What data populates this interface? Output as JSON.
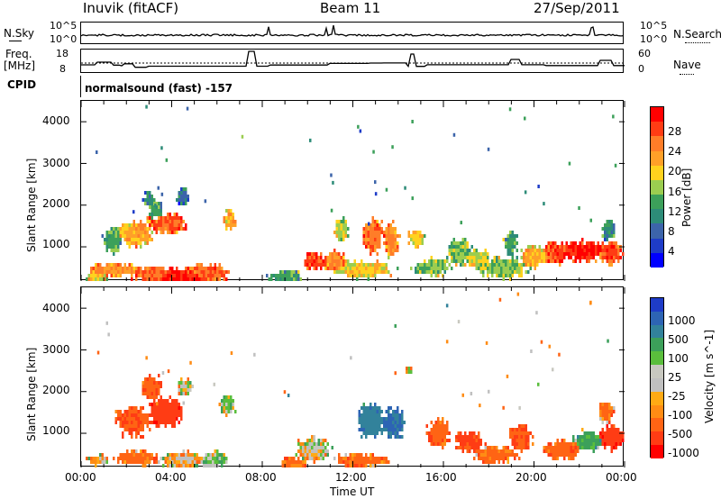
{
  "header": {
    "station": "Inuvik (fitACF)",
    "beam": "Beam 11",
    "date": "27/Sep/2011"
  },
  "top_panels": {
    "nsky_label": "N.Sky",
    "nsky_ticks": [
      "10^5",
      "10^0"
    ],
    "nsearch_label": "N.Search",
    "nsearch_ticks": [
      "10^5",
      "10^0"
    ],
    "freq_label": "Freq.",
    "freq_unit": "[MHz]",
    "freq_ticks": [
      "18",
      "8"
    ],
    "nave_label": "Nave",
    "nave_ticks": [
      "60",
      "0"
    ],
    "cpid_label": "CPID",
    "cpid_value": "normalsound (fast) -157"
  },
  "x_axis": {
    "label": "Time UT",
    "ticks": [
      "00:00",
      "04:00",
      "08:00",
      "12:00",
      "16:00",
      "20:00",
      "00:00"
    ]
  },
  "power_panel": {
    "ylabel": "Slant Range [km]",
    "yticks": [
      "4000",
      "3000",
      "2000",
      "1000"
    ],
    "colorbar_label": "Power [dB]",
    "colorbar_ticks": [
      "28",
      "24",
      "20",
      "16",
      "12",
      "8",
      "4"
    ],
    "colorbar_colors": [
      "#ff0000",
      "#ff3c14",
      "#ff7d28",
      "#ffa028",
      "#ffd21e",
      "#9bcd50",
      "#3ca05a",
      "#2d8c78",
      "#3c64aa",
      "#1e3cc8",
      "#0000ff"
    ]
  },
  "velocity_panel": {
    "ylabel": "Slant Range [km]",
    "yticks": [
      "4000",
      "3000",
      "2000",
      "1000"
    ],
    "colorbar_label": "Velocity [m s^-1]",
    "colorbar_ticks": [
      "1000",
      "500",
      "100",
      "25",
      "-25",
      "-100",
      "-500",
      "-1000"
    ],
    "colorbar_colors": [
      "#1e3cc8",
      "#2d64b4",
      "#32829b",
      "#3ca05a",
      "#5abe3c",
      "#c8c8c0",
      "#c0c0c0",
      "#ffaa14",
      "#ff8c14",
      "#ff6414",
      "#ff3c14",
      "#ff0000"
    ]
  },
  "chart_data": {
    "type": "heatmap",
    "xlabel": "Time UT",
    "ylabel": "Slant Range [km]",
    "xlim": [
      "00:00",
      "24:00"
    ],
    "ylim": [
      180,
      4500
    ],
    "power_scale": [
      0,
      30
    ],
    "velocity_scale": [
      -1000,
      1000
    ],
    "power_blobs": [
      {
        "t": 0.7,
        "r": 300,
        "w": 0.6,
        "h": 150,
        "v": 18
      },
      {
        "t": 1.5,
        "r": 450,
        "w": 1.5,
        "h": 200,
        "v": 22
      },
      {
        "t": 3.2,
        "r": 350,
        "w": 1.2,
        "h": 250,
        "v": 24
      },
      {
        "t": 4.5,
        "r": 300,
        "w": 2.0,
        "h": 250,
        "v": 27
      },
      {
        "t": 5.5,
        "r": 350,
        "w": 1.2,
        "h": 300,
        "v": 24
      },
      {
        "t": 2.4,
        "r": 1300,
        "w": 1.0,
        "h": 350,
        "v": 20
      },
      {
        "t": 3.8,
        "r": 1550,
        "w": 1.0,
        "h": 300,
        "v": 24
      },
      {
        "t": 3.3,
        "r": 1900,
        "w": 0.4,
        "h": 300,
        "v": 12
      },
      {
        "t": 3.0,
        "r": 2150,
        "w": 0.3,
        "h": 200,
        "v": 10
      },
      {
        "t": 4.5,
        "r": 2200,
        "w": 0.3,
        "h": 250,
        "v": 8
      },
      {
        "t": 6.6,
        "r": 1650,
        "w": 0.3,
        "h": 300,
        "v": 20
      },
      {
        "t": 1.4,
        "r": 1150,
        "w": 0.5,
        "h": 400,
        "v": 12
      },
      {
        "t": 9.0,
        "r": 300,
        "w": 1.0,
        "h": 150,
        "v": 12
      },
      {
        "t": 10.3,
        "r": 650,
        "w": 0.6,
        "h": 250,
        "v": 26
      },
      {
        "t": 11.2,
        "r": 650,
        "w": 0.6,
        "h": 300,
        "v": 22
      },
      {
        "t": 12.5,
        "r": 450,
        "w": 1.5,
        "h": 250,
        "v": 18
      },
      {
        "t": 12.9,
        "r": 1250,
        "w": 0.6,
        "h": 500,
        "v": 24
      },
      {
        "t": 13.7,
        "r": 1150,
        "w": 0.4,
        "h": 500,
        "v": 22
      },
      {
        "t": 11.5,
        "r": 1400,
        "w": 0.4,
        "h": 350,
        "v": 16
      },
      {
        "t": 14.8,
        "r": 1200,
        "w": 0.4,
        "h": 300,
        "v": 18
      },
      {
        "t": 15.5,
        "r": 500,
        "w": 1.0,
        "h": 250,
        "v": 14
      },
      {
        "t": 16.7,
        "r": 900,
        "w": 0.6,
        "h": 400,
        "v": 14
      },
      {
        "t": 17.5,
        "r": 700,
        "w": 0.8,
        "h": 250,
        "v": 16
      },
      {
        "t": 18.6,
        "r": 500,
        "w": 1.4,
        "h": 300,
        "v": 14
      },
      {
        "t": 19.0,
        "r": 1100,
        "w": 0.4,
        "h": 350,
        "v": 12
      },
      {
        "t": 20.0,
        "r": 750,
        "w": 0.8,
        "h": 300,
        "v": 20
      },
      {
        "t": 21.0,
        "r": 850,
        "w": 0.8,
        "h": 300,
        "v": 26
      },
      {
        "t": 22.2,
        "r": 900,
        "w": 1.1,
        "h": 300,
        "v": 28
      },
      {
        "t": 23.4,
        "r": 850,
        "w": 0.7,
        "h": 350,
        "v": 26
      },
      {
        "t": 23.3,
        "r": 1400,
        "w": 0.4,
        "h": 300,
        "v": 10
      }
    ],
    "velocity_blobs": [
      {
        "t": 0.8,
        "r": 350,
        "w": 0.6,
        "h": 150,
        "v": -40
      },
      {
        "t": 2.5,
        "r": 400,
        "w": 1.2,
        "h": 200,
        "v": -150
      },
      {
        "t": 4.5,
        "r": 350,
        "w": 1.2,
        "h": 250,
        "v": -10
      },
      {
        "t": 5.8,
        "r": 350,
        "w": 0.8,
        "h": 250,
        "v": 60
      },
      {
        "t": 2.3,
        "r": 1300,
        "w": 0.9,
        "h": 450,
        "v": -250
      },
      {
        "t": 3.7,
        "r": 1500,
        "w": 1.0,
        "h": 450,
        "v": -400
      },
      {
        "t": 3.1,
        "r": 2100,
        "w": 0.5,
        "h": 400,
        "v": -200
      },
      {
        "t": 4.6,
        "r": 2100,
        "w": 0.4,
        "h": 250,
        "v": 0
      },
      {
        "t": 6.5,
        "r": 1700,
        "w": 0.4,
        "h": 300,
        "v": 60
      },
      {
        "t": 10.2,
        "r": 600,
        "w": 0.9,
        "h": 350,
        "v": 0
      },
      {
        "t": 9.4,
        "r": 300,
        "w": 0.8,
        "h": 150,
        "v": -150
      },
      {
        "t": 12.8,
        "r": 1300,
        "w": 0.7,
        "h": 500,
        "v": 400
      },
      {
        "t": 13.8,
        "r": 1250,
        "w": 0.6,
        "h": 450,
        "v": 500
      },
      {
        "t": 12.4,
        "r": 350,
        "w": 1.4,
        "h": 200,
        "v": -150
      },
      {
        "t": 14.5,
        "r": 2500,
        "w": 0.2,
        "h": 100,
        "v": 0
      },
      {
        "t": 15.8,
        "r": 1000,
        "w": 0.6,
        "h": 400,
        "v": -200
      },
      {
        "t": 17.2,
        "r": 800,
        "w": 0.8,
        "h": 300,
        "v": -300
      },
      {
        "t": 18.3,
        "r": 500,
        "w": 1.2,
        "h": 250,
        "v": -150
      },
      {
        "t": 19.4,
        "r": 900,
        "w": 0.6,
        "h": 400,
        "v": -250
      },
      {
        "t": 21.3,
        "r": 600,
        "w": 1.0,
        "h": 300,
        "v": -200
      },
      {
        "t": 22.4,
        "r": 800,
        "w": 0.8,
        "h": 300,
        "v": 150
      },
      {
        "t": 23.4,
        "r": 900,
        "w": 0.7,
        "h": 350,
        "v": -400
      },
      {
        "t": 23.2,
        "r": 1500,
        "w": 0.4,
        "h": 300,
        "v": -150
      }
    ]
  }
}
